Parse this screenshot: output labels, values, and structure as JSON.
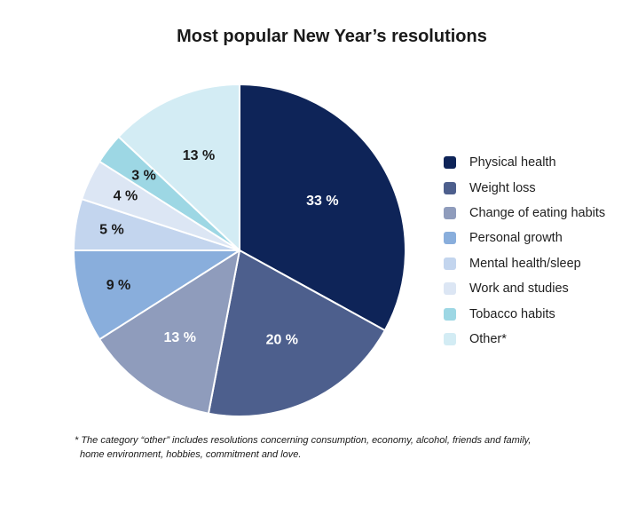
{
  "chart_data": {
    "type": "pie",
    "title": "Most popular New Year’s resolutions",
    "slices": [
      {
        "name": "Physical health",
        "value": 33,
        "label": "33 %",
        "color": "#0e2458",
        "label_color": "#ffffff"
      },
      {
        "name": "Weight loss",
        "value": 20,
        "label": "20 %",
        "color": "#4d5f8d",
        "label_color": "#ffffff"
      },
      {
        "name": "Change of eating habits",
        "value": 13,
        "label": "13 %",
        "color": "#8f9cbc",
        "label_color": "#ffffff"
      },
      {
        "name": "Personal growth",
        "value": 9,
        "label": "9 %",
        "color": "#89aedc",
        "label_color": "#1a1a1a"
      },
      {
        "name": "Mental health/sleep",
        "value": 5,
        "label": "5 %",
        "color": "#c3d5ee",
        "label_color": "#1a1a1a"
      },
      {
        "name": "Work and studies",
        "value": 4,
        "label": "4 %",
        "color": "#dce6f4",
        "label_color": "#1a1a1a"
      },
      {
        "name": "Tobacco habits",
        "value": 3,
        "label": "3 %",
        "color": "#9dd7e4",
        "label_color": "#1a1a1a"
      },
      {
        "name": "Other",
        "value": 13,
        "label": "13 %",
        "color": "#d3ecf4",
        "label_color": "#1a1a1a"
      }
    ],
    "legend": [
      "Physical health",
      "Weight loss",
      "Change of eating habits",
      "Personal growth",
      "Mental health/sleep",
      "Work and studies",
      "Tobacco habits",
      "Other*"
    ],
    "legend_position": "right",
    "start": "12 o'clock",
    "direction": "clockwise"
  },
  "footnote": {
    "line1": "* The category “other” includes resolutions concerning consumption, economy, alcohol, friends and family,",
    "line2": "home environment, hobbies, commitment and love."
  }
}
